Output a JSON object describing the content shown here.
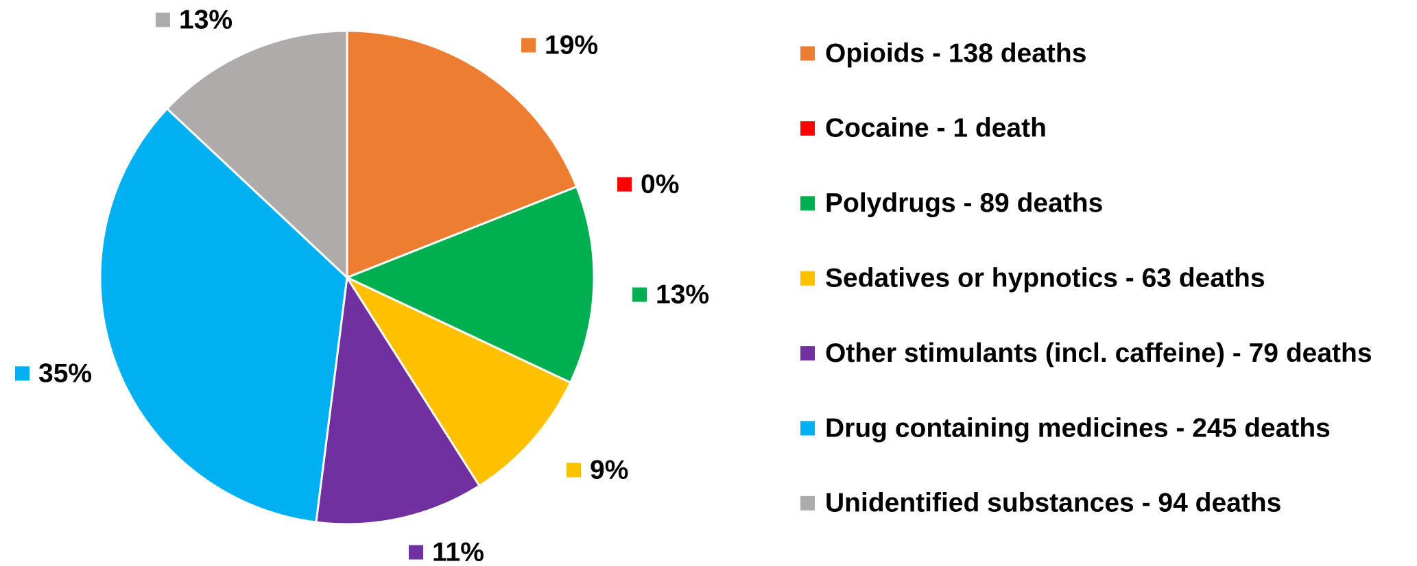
{
  "chart_data": {
    "type": "pie",
    "categories": [
      "Opioids - 138 deaths",
      "Cocaine - 1 death",
      "Polydrugs - 89 deaths",
      "Sedatives or hypnotics - 63 deaths",
      "Other stimulants (incl. caffeine) - 79 deaths",
      "Drug containing medicines - 245 deaths",
      "Unidentified substances - 94 deaths"
    ],
    "values": [
      19,
      0,
      13,
      9,
      11,
      35,
      13
    ],
    "value_labels": [
      "19%",
      "0%",
      "13%",
      "9%",
      "11%",
      "35%",
      "13%"
    ],
    "colors": [
      "#ED7D31",
      "#FF0000",
      "#00B050",
      "#FFC000",
      "#7030A0",
      "#00B0F0",
      "#AFABAB"
    ],
    "legend": "right"
  }
}
